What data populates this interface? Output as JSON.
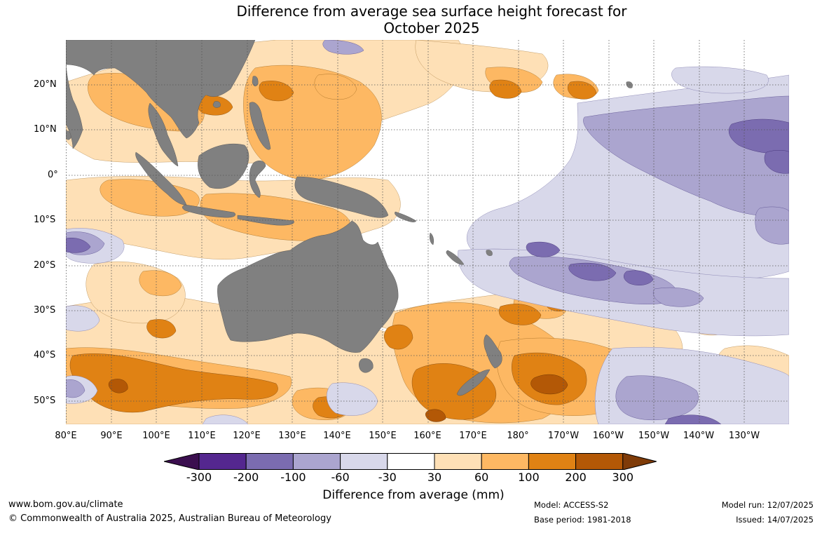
{
  "title": {
    "line1": "Difference from average sea surface height forecast for",
    "line2": "October 2025"
  },
  "lat_labels": [
    "20°N",
    "10°N",
    "0°",
    "10°S",
    "20°S",
    "30°S",
    "40°S",
    "50°S"
  ],
  "lon_labels": [
    "80°E",
    "90°E",
    "100°E",
    "110°E",
    "120°E",
    "130°E",
    "140°E",
    "150°E",
    "160°E",
    "170°E",
    "180°",
    "170°W",
    "160°W",
    "150°W",
    "140°W",
    "130°W"
  ],
  "colorbar": {
    "ticks": [
      "-300",
      "-200",
      "-100",
      "-60",
      "-30",
      "30",
      "60",
      "100",
      "200",
      "300"
    ],
    "colors": [
      "#3b0f4f",
      "#54278f",
      "#7b6cb0",
      "#aba5cf",
      "#d8d8ea",
      "#ffffff",
      "#fee0b6",
      "#fdb863",
      "#e08214",
      "#b35806",
      "#7f3b08"
    ],
    "label": "Difference from average (mm)"
  },
  "legend_colors": {
    "land": "#808080",
    "grid": "#555555"
  },
  "footer": {
    "url": "www.bom.gov.au/climate",
    "copyright": "© Commonwealth of Australia 2025, Australian Bureau of Meteorology",
    "model": "Model: ACCESS-S2",
    "base_period": "Base period: 1981-2018",
    "model_run": "Model run: 12/07/2025",
    "issued": "Issued: 14/07/2025"
  }
}
